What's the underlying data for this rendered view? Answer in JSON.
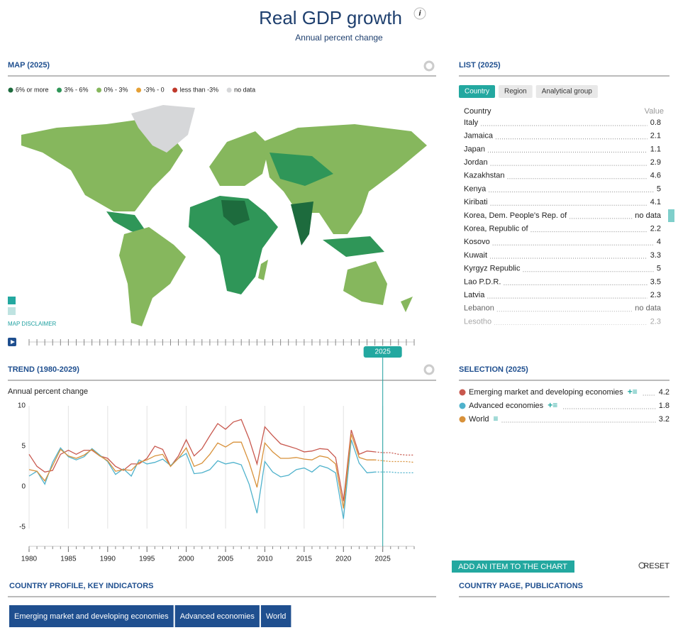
{
  "header": {
    "title": "Real GDP growth",
    "subtitle": "Annual percent change"
  },
  "map": {
    "title": "MAP (2025)",
    "legend": [
      {
        "label": "6% or more",
        "color": "#1d6b3d"
      },
      {
        "label": "3% - 6%",
        "color": "#2f9658"
      },
      {
        "label": "0% - 3%",
        "color": "#86b75d"
      },
      {
        "label": "-3% - 0",
        "color": "#e5a035"
      },
      {
        "label": "less than -3%",
        "color": "#c0392b"
      },
      {
        "label": "no data",
        "color": "#d6d7d9"
      }
    ],
    "disclaimer": "MAP DISCLAIMER",
    "slider_label": "2025"
  },
  "list": {
    "title": "LIST (2025)",
    "tabs": [
      "Country",
      "Region",
      "Analytical group"
    ],
    "column_headers": [
      "Country",
      "Value"
    ],
    "rows": [
      {
        "name": "Italy",
        "value": 0.8
      },
      {
        "name": "Jamaica",
        "value": 2.1
      },
      {
        "name": "Japan",
        "value": 1.1
      },
      {
        "name": "Jordan",
        "value": 2.9
      },
      {
        "name": "Kazakhstan",
        "value": 4.6
      },
      {
        "name": "Kenya",
        "value": 5
      },
      {
        "name": "Kiribati",
        "value": 4.1
      },
      {
        "name": "Korea, Dem. People's Rep. of",
        "value": "no data"
      },
      {
        "name": "Korea, Republic of",
        "value": 2.2
      },
      {
        "name": "Kosovo",
        "value": 4
      },
      {
        "name": "Kuwait",
        "value": 3.3
      },
      {
        "name": "Kyrgyz Republic",
        "value": 5
      },
      {
        "name": "Lao P.D.R.",
        "value": 3.5
      },
      {
        "name": "Latvia",
        "value": 2.3
      },
      {
        "name": "Lebanon",
        "value": "no data"
      },
      {
        "name": "Lesotho",
        "value": 2.3
      }
    ]
  },
  "chart_data": {
    "type": "line",
    "title": "TREND (1980-2029)",
    "y_label": "Annual percent change",
    "x": [
      1980,
      1981,
      1982,
      1983,
      1984,
      1985,
      1986,
      1987,
      1988,
      1989,
      1990,
      1991,
      1992,
      1993,
      1994,
      1995,
      1996,
      1997,
      1998,
      1999,
      2000,
      2001,
      2002,
      2003,
      2004,
      2005,
      2006,
      2007,
      2008,
      2009,
      2010,
      2011,
      2012,
      2013,
      2014,
      2015,
      2016,
      2017,
      2018,
      2019,
      2020,
      2021,
      2022,
      2023,
      2024,
      2025,
      2026,
      2027,
      2028,
      2029
    ],
    "projection_start": 2024,
    "series": [
      {
        "name": "Emerging market and developing economies",
        "color": "#c8584e",
        "values": [
          4.0,
          2.5,
          1.8,
          2.0,
          4.0,
          4.5,
          4.0,
          4.5,
          4.5,
          3.8,
          3.5,
          2.5,
          2.0,
          2.8,
          2.8,
          3.5,
          5.0,
          4.6,
          2.5,
          3.8,
          5.8,
          3.8,
          4.7,
          6.3,
          7.8,
          7.1,
          8.0,
          8.3,
          5.9,
          2.8,
          7.4,
          6.3,
          5.3,
          5.0,
          4.7,
          4.3,
          4.4,
          4.7,
          4.6,
          3.6,
          -1.8,
          7.0,
          4.0,
          4.4,
          4.3,
          4.2,
          4.2,
          4.0,
          3.9,
          3.9
        ]
      },
      {
        "name": "Advanced economies",
        "color": "#4fb2cc",
        "values": [
          1.3,
          1.9,
          0.3,
          3.0,
          4.8,
          3.7,
          3.3,
          3.7,
          4.7,
          3.9,
          3.1,
          1.5,
          2.2,
          1.3,
          3.3,
          2.8,
          3.0,
          3.4,
          2.6,
          3.5,
          4.1,
          1.6,
          1.7,
          2.1,
          3.2,
          2.8,
          3.0,
          2.7,
          0.3,
          -3.3,
          3.1,
          1.8,
          1.2,
          1.4,
          2.1,
          2.3,
          1.8,
          2.6,
          2.3,
          1.7,
          -4.0,
          5.8,
          2.9,
          1.7,
          1.8,
          1.8,
          1.8,
          1.7,
          1.7,
          1.7
        ]
      },
      {
        "name": "World",
        "color": "#d8913a",
        "values": [
          2.1,
          1.9,
          0.7,
          2.6,
          4.6,
          3.8,
          3.5,
          3.9,
          4.6,
          3.8,
          3.2,
          1.9,
          2.1,
          2.0,
          3.0,
          3.3,
          3.8,
          4.0,
          2.5,
          3.5,
          4.8,
          2.5,
          2.9,
          4.0,
          5.4,
          4.9,
          5.5,
          5.5,
          3.0,
          -0.1,
          5.4,
          4.3,
          3.5,
          3.5,
          3.6,
          3.4,
          3.3,
          3.8,
          3.6,
          2.8,
          -2.7,
          6.5,
          3.6,
          3.3,
          3.3,
          3.2,
          3.1,
          3.1,
          3.1,
          3.0
        ]
      }
    ],
    "xlim": [
      1980,
      2029
    ],
    "xticks": [
      1980,
      1985,
      1990,
      1995,
      2000,
      2005,
      2010,
      2015,
      2020,
      2025
    ],
    "ylim": [
      -7.4,
      10
    ],
    "yticks": [
      10,
      5,
      0,
      -5
    ],
    "grid": true
  },
  "selection": {
    "title": "SELECTION (2025)",
    "values": [
      4.2,
      1.8,
      3.2
    ],
    "add_button": "ADD AN ITEM TO THE CHART",
    "reset": "RESET"
  },
  "footer": {
    "profile_title": "COUNTRY PROFILE, KEY INDICATORS",
    "profile_buttons": [
      "Emerging market and developing economies",
      "Advanced economies",
      "World"
    ],
    "page_title": "COUNTRY PAGE, PUBLICATIONS"
  }
}
